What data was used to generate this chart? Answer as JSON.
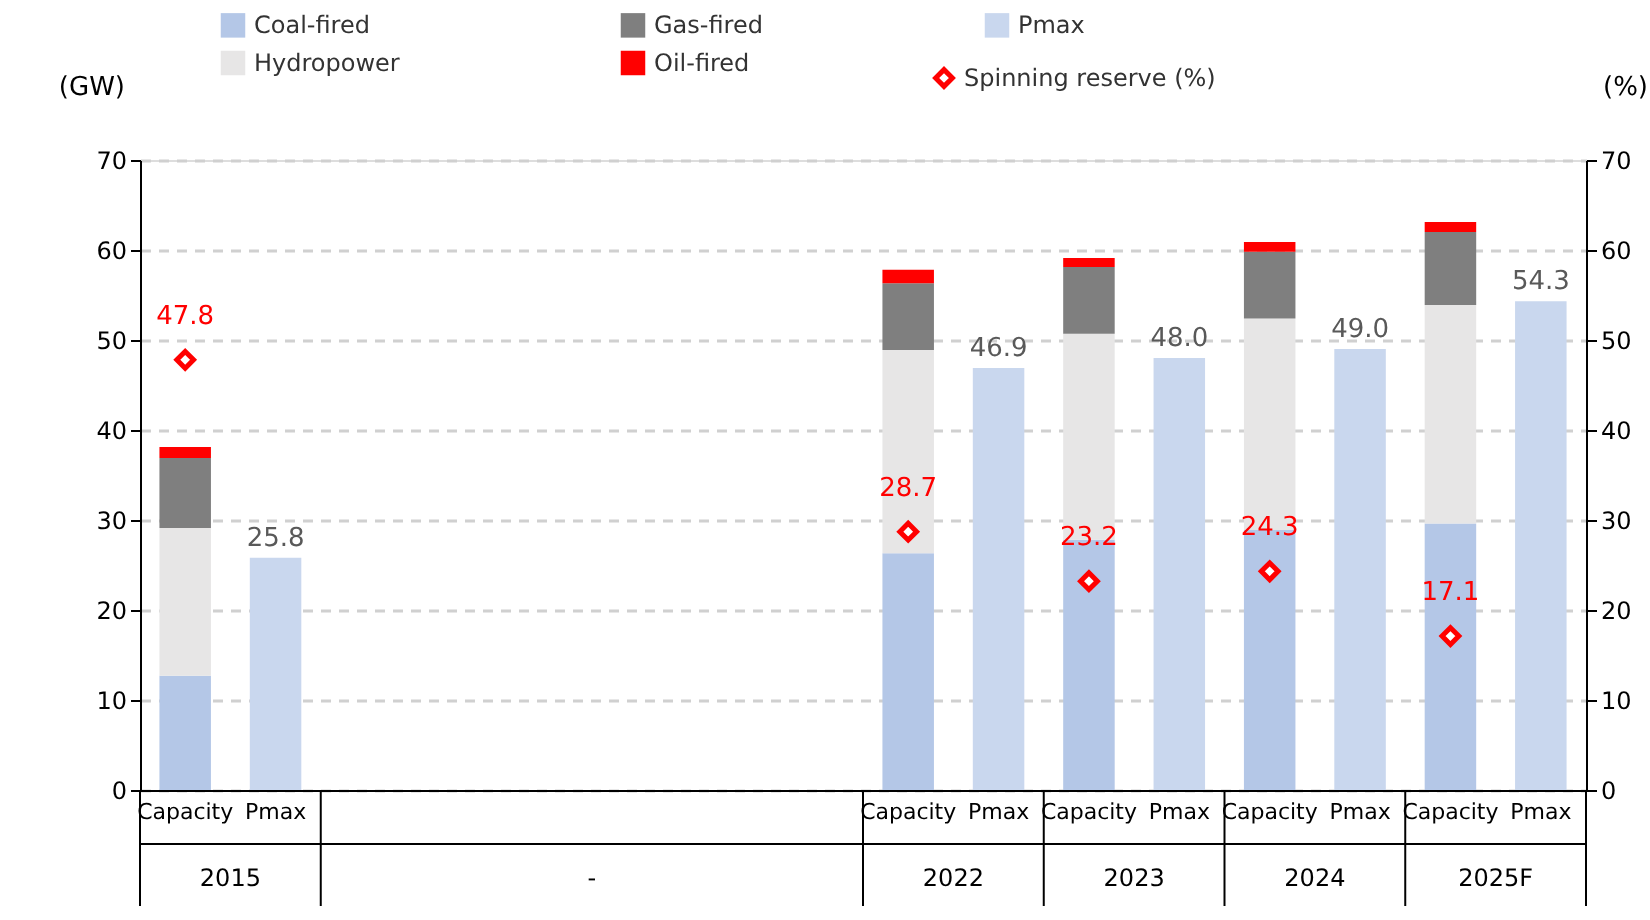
{
  "chart_data": {
    "type": "bar",
    "stacked": true,
    "ylabel": "(GW)",
    "y2label": "(%)",
    "categories": [
      "Capacity",
      "Pmax",
      null,
      null,
      null,
      null,
      null,
      null,
      "Capacity",
      "Pmax",
      "Capacity",
      "Pmax",
      "Capacity",
      "Pmax",
      "Capacity",
      "Pmax"
    ],
    "annotations": [
      "2015",
      "-",
      "2022",
      "2023",
      "2024",
      "2025F"
    ],
    "ylim": [
      0,
      70
    ],
    "yticks": [
      0,
      10,
      20,
      30,
      40,
      50,
      60,
      70
    ],
    "y2lim": [
      0,
      70
    ],
    "y2ticks": [
      0,
      10,
      20,
      30,
      40,
      50,
      60,
      70
    ],
    "grid": "y",
    "legend": "top",
    "series": [
      {
        "name": "Coal-fired",
        "color": "#b4c7e7",
        "values": [
          12.7,
          null,
          null,
          null,
          null,
          null,
          null,
          null,
          26.3,
          null,
          27.8,
          null,
          28.9,
          null,
          29.6,
          null
        ]
      },
      {
        "name": "Hydropower",
        "color": "#e7e6e6",
        "values": [
          16.4,
          null,
          null,
          null,
          null,
          null,
          null,
          null,
          22.6,
          null,
          22.9,
          null,
          23.5,
          null,
          24.3,
          null
        ]
      },
      {
        "name": "Gas-fired",
        "color": "#7f7f7f",
        "values": [
          7.8,
          null,
          null,
          null,
          null,
          null,
          null,
          null,
          7.4,
          null,
          7.4,
          null,
          7.4,
          null,
          8.1,
          null
        ]
      },
      {
        "name": "Oil-fired",
        "color": "#ff0000",
        "values": [
          1.2,
          null,
          null,
          null,
          null,
          null,
          null,
          null,
          1.5,
          null,
          1.0,
          null,
          1.1,
          null,
          1.1,
          null
        ]
      },
      {
        "name": "Pmax",
        "color": "#c9d7ee",
        "values": [
          null,
          25.8,
          null,
          null,
          null,
          null,
          null,
          null,
          null,
          46.9,
          null,
          48.0,
          null,
          49.0,
          null,
          54.3
        ],
        "value_labels": [
          null,
          "25.8",
          null,
          null,
          null,
          null,
          null,
          null,
          null,
          "46.9",
          null,
          "48.0",
          null,
          "49.0",
          null,
          "54.3"
        ]
      },
      {
        "name": "Spinning reserve (%)",
        "type": "scatter",
        "axis": "y2",
        "marker": "diamond",
        "color": "#ff0000",
        "values": [
          47.8,
          null,
          null,
          null,
          null,
          null,
          null,
          null,
          28.7,
          null,
          23.2,
          null,
          24.3,
          null,
          17.1,
          null
        ],
        "value_labels": [
          "47.8",
          null,
          null,
          null,
          null,
          null,
          null,
          null,
          "28.7",
          null,
          "23.2",
          null,
          "24.3",
          null,
          "17.1",
          null
        ]
      }
    ]
  }
}
